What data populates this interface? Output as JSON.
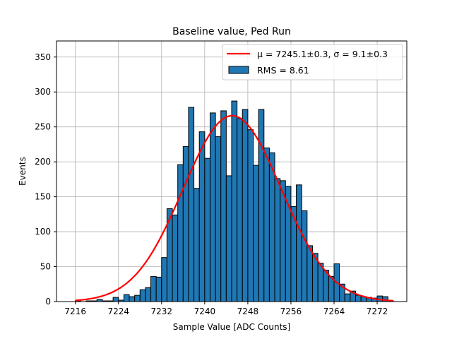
{
  "chart_data": {
    "type": "bar",
    "title": "Baseline value, Ped Run",
    "xlabel": "Sample Value [ADC Counts]",
    "ylabel": "Events",
    "xlim": [
      7212.5,
      7277.5
    ],
    "ylim": [
      0,
      373
    ],
    "xticks": [
      7216,
      7224,
      7232,
      7240,
      7248,
      7256,
      7264,
      7272
    ],
    "yticks": [
      0,
      50,
      100,
      150,
      200,
      250,
      300,
      350
    ],
    "grid": true,
    "legend_position": "top-right",
    "bin_width": 1,
    "histogram": {
      "name": "RMS = 8.61",
      "color": "#1f77b4",
      "bin_starts": [
        7216,
        7217,
        7218,
        7219,
        7220,
        7221,
        7222,
        7223,
        7224,
        7225,
        7226,
        7227,
        7228,
        7229,
        7230,
        7231,
        7232,
        7233,
        7234,
        7235,
        7236,
        7237,
        7238,
        7239,
        7240,
        7241,
        7242,
        7243,
        7244,
        7245,
        7246,
        7247,
        7248,
        7249,
        7250,
        7251,
        7252,
        7253,
        7254,
        7255,
        7256,
        7257,
        7258,
        7259,
        7260,
        7261,
        7262,
        7263,
        7264,
        7265,
        7266,
        7267,
        7268,
        7269,
        7270,
        7271,
        7272,
        7273,
        7274
      ],
      "values": [
        1,
        0,
        1,
        1,
        3,
        1,
        1,
        6,
        2,
        10,
        7,
        9,
        17,
        20,
        36,
        35,
        63,
        133,
        124,
        196,
        222,
        278,
        162,
        243,
        205,
        270,
        236,
        273,
        180,
        287,
        262,
        275,
        246,
        195,
        275,
        220,
        213,
        176,
        173,
        165,
        136,
        167,
        130,
        80,
        69,
        55,
        45,
        36,
        54,
        25,
        11,
        15,
        9,
        7,
        6,
        5,
        8,
        7,
        1
      ]
    },
    "fit": {
      "name": "μ = 7245.1±0.3, σ = 9.1±0.3",
      "color": "#ff0000",
      "mu": 7245.1,
      "sigma": 9.1,
      "amplitude": 266,
      "x_range": [
        7216,
        7275
      ]
    }
  }
}
